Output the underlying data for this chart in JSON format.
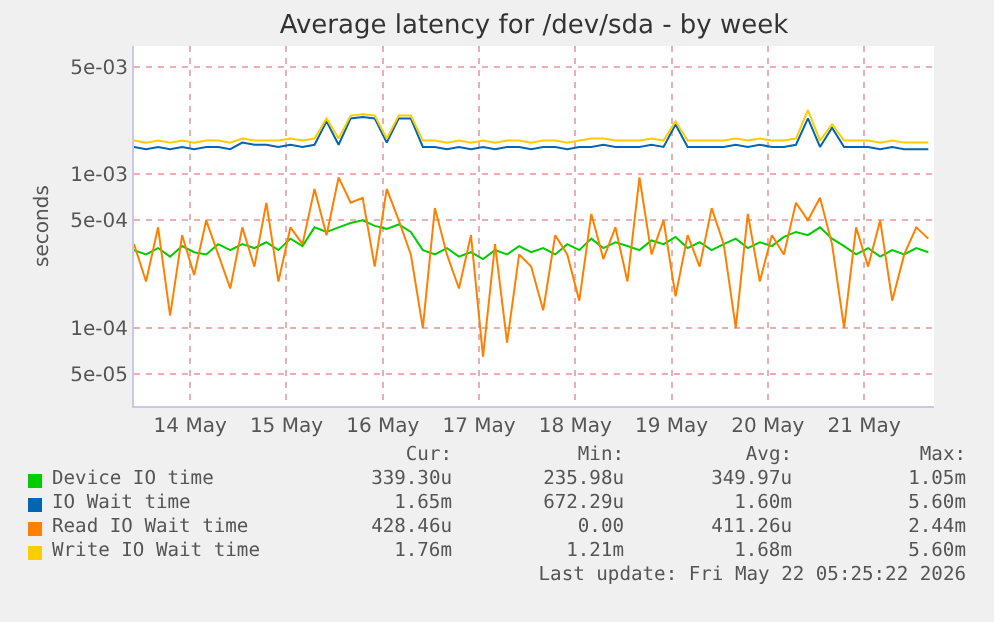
{
  "chart_data": {
    "type": "line",
    "title": "Average latency for /dev/sda - by week",
    "ylabel": "seconds",
    "log": true,
    "grid": true,
    "legend": "bottom",
    "marker": "none",
    "line_style": "solid",
    "xlim": [
      "2026-05-13T22:00",
      "2026-05-22T05:25"
    ],
    "xticks": [
      {
        "value": "2026-05-14T12:00",
        "label": "14 May"
      },
      {
        "value": "2026-05-15T12:00",
        "label": "15 May"
      },
      {
        "value": "2026-05-16T12:00",
        "label": "16 May"
      },
      {
        "value": "2026-05-17T12:00",
        "label": "17 May"
      },
      {
        "value": "2026-05-18T12:00",
        "label": "18 May"
      },
      {
        "value": "2026-05-19T12:00",
        "label": "19 May"
      },
      {
        "value": "2026-05-20T12:00",
        "label": "20 May"
      },
      {
        "value": "2026-05-21T12:00",
        "label": "21 May"
      }
    ],
    "ylim": [
      3.1e-05,
      0.0068
    ],
    "yticks": [
      {
        "value": 5e-05,
        "label": "5e-05"
      },
      {
        "value": 0.0001,
        "label": "1e-04"
      },
      {
        "value": 0.0005,
        "label": "5e-04"
      },
      {
        "value": 0.001,
        "label": "1e-03"
      },
      {
        "value": 0.005,
        "label": "5e-03"
      }
    ],
    "x": [
      "2026-05-13T22:00",
      "2026-05-14T01:00",
      "2026-05-14T04:00",
      "2026-05-14T07:00",
      "2026-05-14T10:00",
      "2026-05-14T13:00",
      "2026-05-14T16:00",
      "2026-05-14T19:00",
      "2026-05-14T22:00",
      "2026-05-15T01:00",
      "2026-05-15T04:00",
      "2026-05-15T07:00",
      "2026-05-15T10:00",
      "2026-05-15T13:00",
      "2026-05-15T16:00",
      "2026-05-15T19:00",
      "2026-05-15T22:00",
      "2026-05-16T01:00",
      "2026-05-16T04:00",
      "2026-05-16T07:00",
      "2026-05-16T10:00",
      "2026-05-16T13:00",
      "2026-05-16T16:00",
      "2026-05-16T19:00",
      "2026-05-16T22:00",
      "2026-05-17T01:00",
      "2026-05-17T04:00",
      "2026-05-17T07:00",
      "2026-05-17T10:00",
      "2026-05-17T13:00",
      "2026-05-17T16:00",
      "2026-05-17T19:00",
      "2026-05-17T22:00",
      "2026-05-18T01:00",
      "2026-05-18T04:00",
      "2026-05-18T07:00",
      "2026-05-18T10:00",
      "2026-05-18T13:00",
      "2026-05-18T16:00",
      "2026-05-18T19:00",
      "2026-05-18T22:00",
      "2026-05-19T01:00",
      "2026-05-19T04:00",
      "2026-05-19T07:00",
      "2026-05-19T10:00",
      "2026-05-19T13:00",
      "2026-05-19T16:00",
      "2026-05-19T19:00",
      "2026-05-19T22:00",
      "2026-05-20T01:00",
      "2026-05-20T04:00",
      "2026-05-20T07:00",
      "2026-05-20T10:00",
      "2026-05-20T13:00",
      "2026-05-20T16:00",
      "2026-05-20T19:00",
      "2026-05-20T22:00",
      "2026-05-21T01:00",
      "2026-05-21T04:00",
      "2026-05-21T07:00",
      "2026-05-21T10:00",
      "2026-05-21T13:00",
      "2026-05-21T16:00",
      "2026-05-21T19:00",
      "2026-05-21T22:00",
      "2026-05-22T01:00",
      "2026-05-22T04:00"
    ],
    "series": [
      {
        "name": "Device IO time",
        "color": "#00cc00",
        "values": [
          0.00032,
          0.0003,
          0.00033,
          0.00029,
          0.00034,
          0.00031,
          0.0003,
          0.00035,
          0.00032,
          0.00035,
          0.00033,
          0.00036,
          0.00032,
          0.00038,
          0.00034,
          0.00045,
          0.00042,
          0.00045,
          0.00048,
          0.0005,
          0.00046,
          0.00044,
          0.00047,
          0.00042,
          0.00032,
          0.0003,
          0.00033,
          0.00029,
          0.00031,
          0.00028,
          0.00032,
          0.0003,
          0.00034,
          0.00031,
          0.00033,
          0.0003,
          0.00035,
          0.00032,
          0.00038,
          0.00033,
          0.00036,
          0.00034,
          0.00032,
          0.00037,
          0.00035,
          0.00039,
          0.00033,
          0.00036,
          0.00032,
          0.00035,
          0.00038,
          0.00033,
          0.00036,
          0.00034,
          0.00039,
          0.00042,
          0.0004,
          0.00045,
          0.00038,
          0.00034,
          0.0003,
          0.00033,
          0.00029,
          0.00032,
          0.0003,
          0.00033,
          0.00031
        ]
      },
      {
        "name": "IO Wait time",
        "color": "#0066b3",
        "values": [
          0.0015,
          0.00145,
          0.0015,
          0.00145,
          0.0015,
          0.00145,
          0.0015,
          0.0015,
          0.00145,
          0.0016,
          0.00155,
          0.00155,
          0.0015,
          0.00155,
          0.0015,
          0.00155,
          0.0022,
          0.00155,
          0.0023,
          0.00235,
          0.0023,
          0.0016,
          0.0023,
          0.0023,
          0.0015,
          0.0015,
          0.00145,
          0.0015,
          0.00145,
          0.0015,
          0.00145,
          0.0015,
          0.0015,
          0.00145,
          0.0015,
          0.0015,
          0.00145,
          0.0015,
          0.0015,
          0.00155,
          0.0015,
          0.0015,
          0.0015,
          0.00155,
          0.0015,
          0.0021,
          0.0015,
          0.0015,
          0.0015,
          0.0015,
          0.00155,
          0.0015,
          0.00155,
          0.0015,
          0.0015,
          0.00155,
          0.0023,
          0.0015,
          0.002,
          0.0015,
          0.0015,
          0.0015,
          0.00145,
          0.0015,
          0.00145,
          0.00145,
          0.00145
        ]
      },
      {
        "name": "Read IO Wait time",
        "color": "#ff8000",
        "values": [
          0.00035,
          0.0002,
          0.00045,
          0.00012,
          0.0004,
          0.00022,
          0.0005,
          0.0003,
          0.00018,
          0.00045,
          0.00025,
          0.00065,
          0.0002,
          0.00045,
          0.00035,
          0.0008,
          0.0004,
          0.00095,
          0.00065,
          0.0007,
          0.00025,
          0.0008,
          0.0005,
          0.0003,
          0.0001,
          0.0006,
          0.0003,
          0.00018,
          0.0004,
          6.5e-05,
          0.00035,
          8e-05,
          0.0003,
          0.00025,
          0.00013,
          0.0004,
          0.0003,
          0.00015,
          0.00055,
          0.00028,
          0.00045,
          0.0002,
          0.00095,
          0.0003,
          0.0005,
          0.00016,
          0.0004,
          0.00025,
          0.0006,
          0.00035,
          0.0001,
          0.00055,
          0.0002,
          0.0004,
          0.0003,
          0.00065,
          0.0005,
          0.0007,
          0.00035,
          0.0001,
          0.00045,
          0.00025,
          0.0005,
          0.00015,
          0.0003,
          0.00045,
          0.00038
        ]
      },
      {
        "name": "Write IO Wait time",
        "color": "#ffcc00",
        "values": [
          0.00165,
          0.0016,
          0.00165,
          0.0016,
          0.00165,
          0.0016,
          0.00165,
          0.00165,
          0.0016,
          0.0017,
          0.00165,
          0.00165,
          0.00165,
          0.0017,
          0.00165,
          0.0017,
          0.0023,
          0.0017,
          0.0024,
          0.00245,
          0.0024,
          0.0017,
          0.0024,
          0.0024,
          0.00165,
          0.00165,
          0.0016,
          0.00165,
          0.0016,
          0.00165,
          0.0016,
          0.00165,
          0.00165,
          0.0016,
          0.00165,
          0.00165,
          0.0016,
          0.00165,
          0.0017,
          0.0017,
          0.00165,
          0.00165,
          0.00165,
          0.0017,
          0.00165,
          0.0022,
          0.00165,
          0.00165,
          0.00165,
          0.00165,
          0.0017,
          0.00165,
          0.0017,
          0.00165,
          0.00165,
          0.0017,
          0.0026,
          0.00165,
          0.0021,
          0.00165,
          0.00165,
          0.00165,
          0.0016,
          0.00165,
          0.0016,
          0.0016,
          0.0016
        ]
      }
    ],
    "annotations": [
      "Cur:",
      "Min:",
      "Avg:",
      "Max:",
      "339.30u",
      "235.98u",
      "349.97u",
      "1.05m",
      "1.65m",
      "672.29u",
      "1.60m",
      "5.60m",
      "428.46u",
      "0.00",
      "411.26u",
      "2.44m",
      "1.76m",
      "1.21m",
      "1.68m",
      "5.60m",
      "Last update: Fri May 22 05:25:22 2026"
    ]
  }
}
